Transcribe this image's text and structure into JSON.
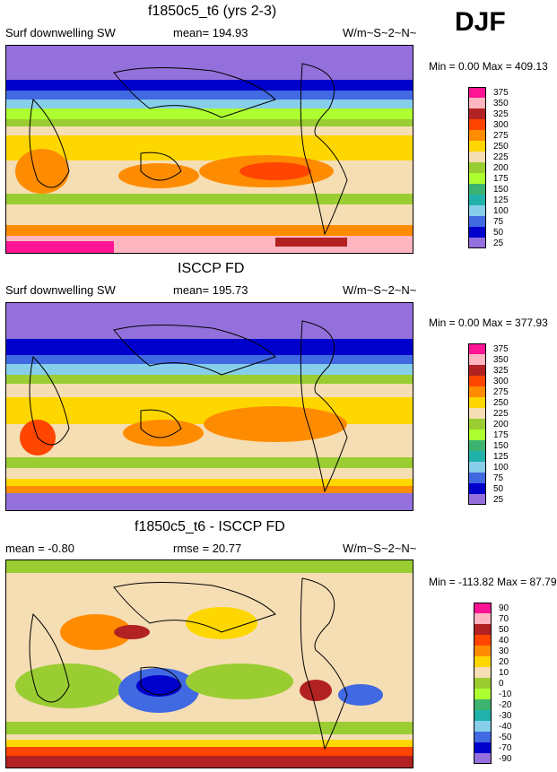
{
  "season": "DJF",
  "panels": [
    {
      "title": "f1850c5_t6 (yrs 2-3)",
      "left": "Surf downwelling SW",
      "center": "mean= 194.93",
      "right": "W/m~S~2~N~",
      "minmax": "Min =   0.00 Max = 409.13",
      "levels": [
        "375",
        "350",
        "325",
        "300",
        "275",
        "250",
        "225",
        "200",
        "175",
        "150",
        "125",
        "100",
        "75",
        "50",
        "25"
      ],
      "colors": [
        "#ff1493",
        "#ffb6c1",
        "#b22222",
        "#ff4500",
        "#ff8c00",
        "#ffd700",
        "#f5deb3",
        "#9acd32",
        "#adff2f",
        "#3cb371",
        "#20b2aa",
        "#87ceeb",
        "#4169e1",
        "#0000cd",
        "#9370db"
      ]
    },
    {
      "title": "ISCCP FD",
      "left": "Surf downwelling SW",
      "center": "mean= 195.73",
      "right": "W/m~S~2~N~",
      "minmax": "Min =   0.00 Max = 377.93",
      "levels": [
        "375",
        "350",
        "325",
        "300",
        "275",
        "250",
        "225",
        "200",
        "175",
        "150",
        "125",
        "100",
        "75",
        "50",
        "25"
      ],
      "colors": [
        "#ff1493",
        "#ffb6c1",
        "#b22222",
        "#ff4500",
        "#ff8c00",
        "#ffd700",
        "#f5deb3",
        "#9acd32",
        "#adff2f",
        "#3cb371",
        "#20b2aa",
        "#87ceeb",
        "#4169e1",
        "#0000cd",
        "#9370db"
      ]
    },
    {
      "title": "f1850c5_t6 - ISCCP FD",
      "left": "mean =  -0.80",
      "center": "rmse =  20.77",
      "right": "W/m~S~2~N~",
      "minmax": "Min = -113.82 Max =  87.79",
      "levels": [
        "90",
        "70",
        "50",
        "40",
        "30",
        "20",
        "10",
        "0",
        "-10",
        "-20",
        "-30",
        "-40",
        "-50",
        "-70",
        "-90"
      ],
      "colors": [
        "#ff1493",
        "#ffb6c1",
        "#b22222",
        "#ff4500",
        "#ff8c00",
        "#ffd700",
        "#f5deb3",
        "#9acd32",
        "#adff2f",
        "#3cb371",
        "#20b2aa",
        "#87ceeb",
        "#4169e1",
        "#0000cd",
        "#9370db"
      ]
    }
  ]
}
